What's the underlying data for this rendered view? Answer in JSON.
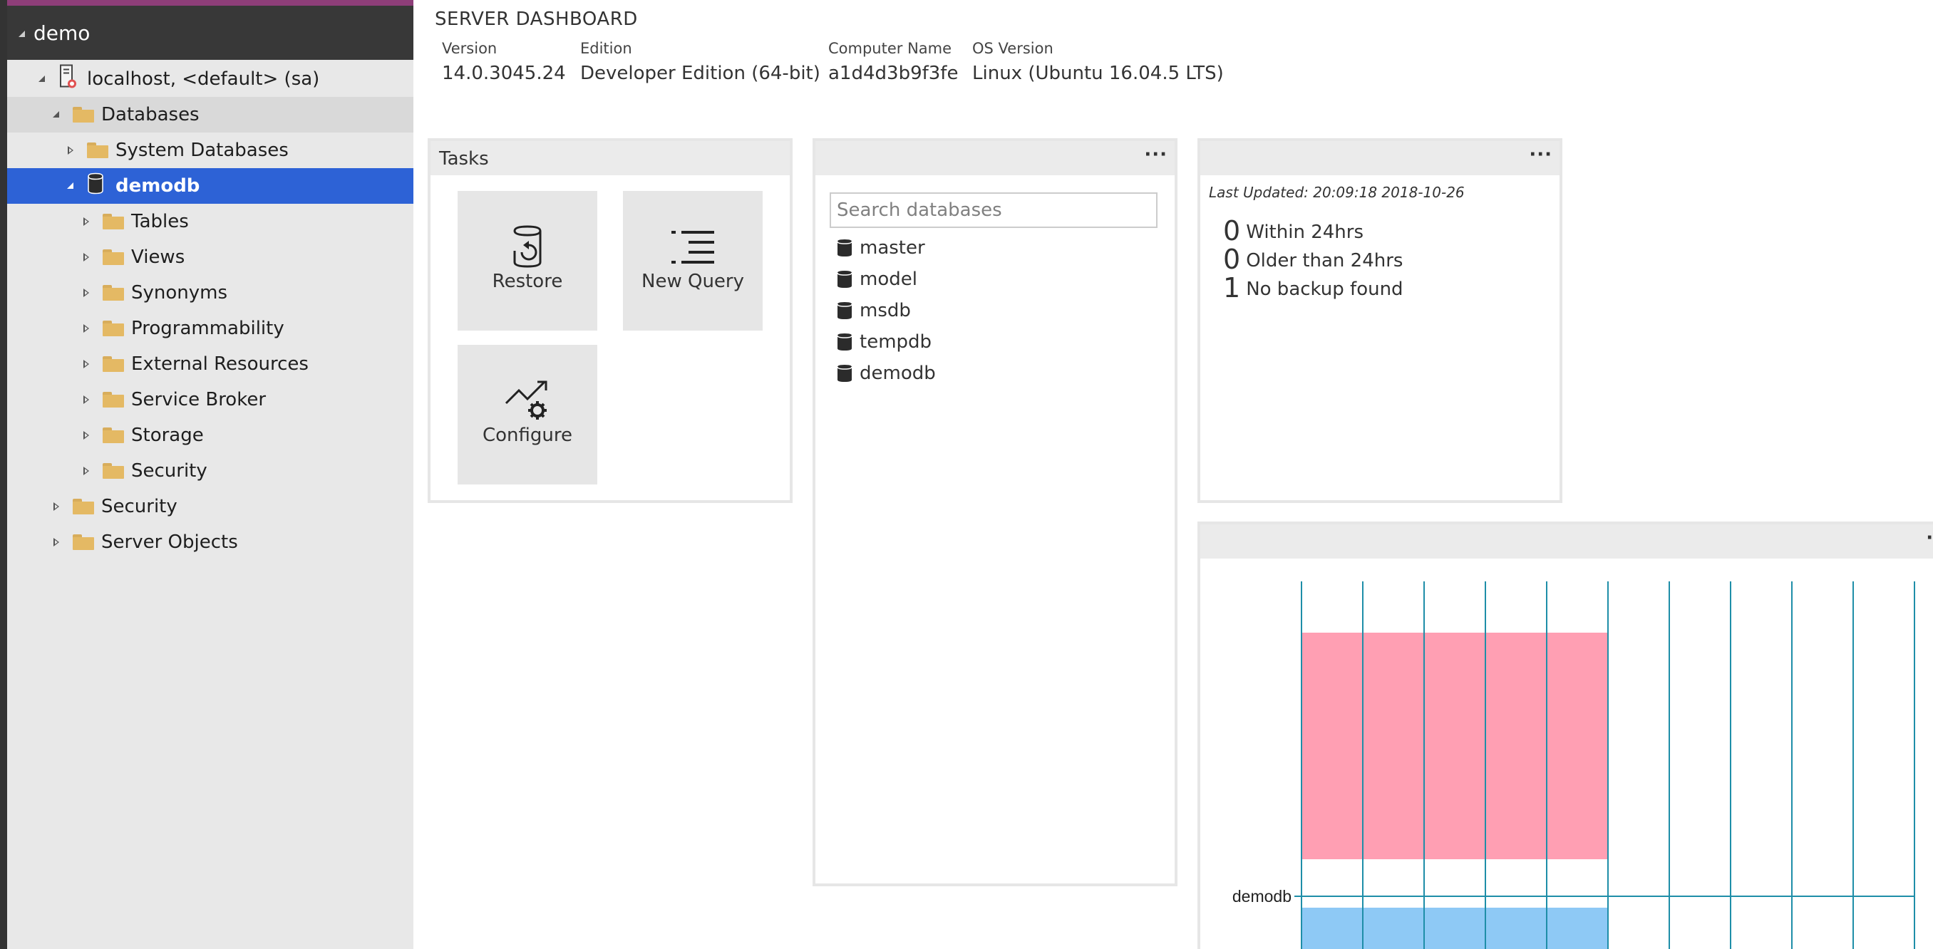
{
  "sidebar": {
    "header_title": "demo",
    "tree": [
      {
        "label": "localhost, <default> (sa)",
        "icon": "server",
        "depth": 0,
        "expanded": true,
        "selected": ""
      },
      {
        "label": "Databases",
        "icon": "folder",
        "depth": 1,
        "expanded": true,
        "selected": "light"
      },
      {
        "label": "System Databases",
        "icon": "folder",
        "depth": 2,
        "expanded": false,
        "selected": ""
      },
      {
        "label": "demodb",
        "icon": "database",
        "depth": 2,
        "expanded": true,
        "selected": "blue"
      },
      {
        "label": "Tables",
        "icon": "folder",
        "depth": 3,
        "expanded": false,
        "selected": ""
      },
      {
        "label": "Views",
        "icon": "folder",
        "depth": 3,
        "expanded": false,
        "selected": ""
      },
      {
        "label": "Synonyms",
        "icon": "folder",
        "depth": 3,
        "expanded": false,
        "selected": ""
      },
      {
        "label": "Programmability",
        "icon": "folder",
        "depth": 3,
        "expanded": false,
        "selected": ""
      },
      {
        "label": "External Resources",
        "icon": "folder",
        "depth": 3,
        "expanded": false,
        "selected": ""
      },
      {
        "label": "Service Broker",
        "icon": "folder",
        "depth": 3,
        "expanded": false,
        "selected": ""
      },
      {
        "label": "Storage",
        "icon": "folder",
        "depth": 3,
        "expanded": false,
        "selected": ""
      },
      {
        "label": "Security",
        "icon": "folder",
        "depth": 3,
        "expanded": false,
        "selected": ""
      },
      {
        "label": "Security",
        "icon": "folder",
        "depth": 1,
        "expanded": false,
        "selected": ""
      },
      {
        "label": "Server Objects",
        "icon": "folder",
        "depth": 1,
        "expanded": false,
        "selected": ""
      }
    ]
  },
  "dashboard": {
    "title": "SERVER DASHBOARD",
    "properties": [
      {
        "key": "Version",
        "value": "14.0.3045.24"
      },
      {
        "key": "Edition",
        "value": "Developer Edition (64-bit)"
      },
      {
        "key": "Computer Name",
        "value": "a1d4d3b9f3fe"
      },
      {
        "key": "OS Version",
        "value": "Linux (Ubuntu 16.04.5 LTS)"
      }
    ]
  },
  "tasks": {
    "title": "Tasks",
    "items": [
      {
        "label": "Restore",
        "icon": "restore-icon"
      },
      {
        "label": "New Query",
        "icon": "new-query-icon"
      },
      {
        "label": "Configure",
        "icon": "configure-icon"
      }
    ]
  },
  "databases_widget": {
    "more_label": "···",
    "search_placeholder": "Search databases",
    "items": [
      "master",
      "model",
      "msdb",
      "tempdb",
      "demodb"
    ]
  },
  "backup_widget": {
    "more_label": "···",
    "last_updated": "Last Updated: 20:09:18 2018-10-26",
    "lines": [
      {
        "count": "0",
        "label": "Within 24hrs"
      },
      {
        "count": "0",
        "label": "Older than 24hrs"
      },
      {
        "count": "1",
        "label": "No backup found"
      }
    ]
  },
  "chart_widget": {
    "more_label": "··"
  },
  "chart_data": {
    "type": "bar",
    "orientation": "horizontal",
    "stacked": false,
    "categories": [
      "demodb"
    ],
    "series": [
      {
        "color": "#ff9fb3",
        "values": [
          5
        ]
      },
      {
        "color": "#8ec9f5",
        "values": [
          5
        ]
      }
    ],
    "xlim": [
      0,
      10
    ],
    "grid": true,
    "title": "",
    "xlabel": "",
    "ylabel": ""
  },
  "colors": {
    "sidebar_bg": "#e8e8e8",
    "sidebar_header_bg": "#383838",
    "accent": "#8e3e79",
    "selection_blue": "#2d62d6",
    "gridline": "#1e8ea8"
  }
}
